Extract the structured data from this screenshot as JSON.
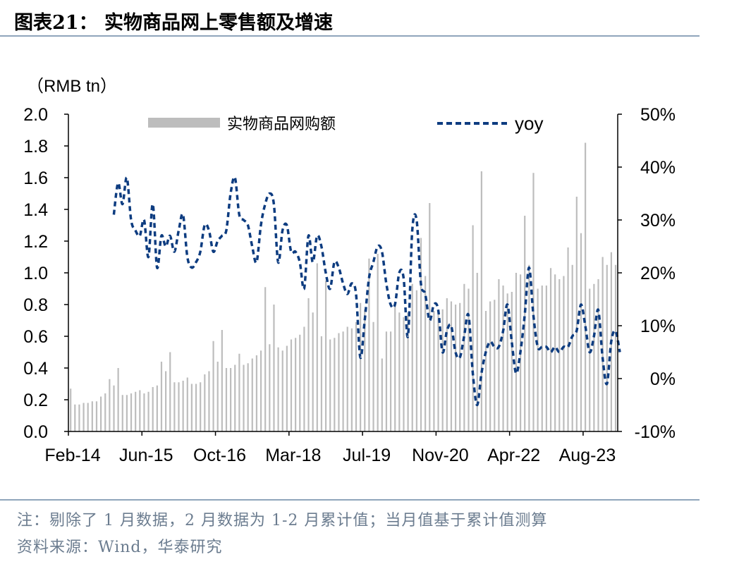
{
  "header": {
    "title": "图表21：  实物商品网上零售额及增速"
  },
  "footer": {
    "note": "注：剔除了 1 月数据，2 月数据为 1-2 月累计值；当月值基于累计值测算",
    "source": "资料来源：Wind，华泰研究"
  },
  "chart_data": {
    "type": "bar",
    "unit_label": "（RMB tn）",
    "x_tick_labels": [
      "Feb-14",
      "Jun-15",
      "Oct-16",
      "Mar-18",
      "Jul-19",
      "Nov-20",
      "Apr-22",
      "Aug-23"
    ],
    "y_left": {
      "min": 0,
      "max": 2.0,
      "step": 0.2,
      "tick_labels": [
        "0.0",
        "0.2",
        "0.4",
        "0.6",
        "0.8",
        "1.0",
        "1.2",
        "1.4",
        "1.6",
        "1.8",
        "2.0"
      ]
    },
    "y_right": {
      "min": -10,
      "max": 50,
      "step": 10,
      "tick_labels": [
        "-10%",
        "0%",
        "10%",
        "20%",
        "30%",
        "40%",
        "50%"
      ]
    },
    "legend": [
      "实物商品网购额",
      "yoy"
    ],
    "colors": {
      "bars": "#bdbdbd",
      "line": "#0d3c80",
      "axis": "#000000"
    },
    "series": [
      {
        "name": "实物商品网购额",
        "type": "bar",
        "axis": "left",
        "values": [
          0.27,
          0.17,
          0.17,
          0.18,
          0.18,
          0.19,
          0.19,
          0.22,
          0.24,
          0.33,
          0.29,
          0.4,
          0.23,
          0.23,
          0.24,
          0.25,
          0.26,
          0.24,
          0.25,
          0.28,
          0.29,
          0.44,
          0.38,
          0.5,
          0.31,
          0.31,
          0.32,
          0.34,
          0.3,
          0.3,
          0.31,
          0.36,
          0.38,
          0.57,
          0.44,
          0.64,
          0.4,
          0.4,
          0.42,
          0.49,
          0.42,
          0.43,
          0.46,
          0.48,
          0.51,
          0.91,
          0.55,
          0.8,
          0.53,
          0.51,
          0.54,
          0.58,
          0.59,
          0.61,
          0.66,
          0.84,
          0.75,
          1.06,
          0.6,
          0.95,
          0.58,
          0.59,
          0.62,
          0.63,
          0.66,
          0.65,
          0.69,
          0.81,
          0.77,
          1.09,
          0.69,
          1.12,
          0.46,
          0.63,
          0.63,
          0.81,
          0.75,
          0.72,
          0.75,
          0.93,
          0.89,
          1.22,
          0.98,
          1.44,
          0.76,
          0.74,
          0.77,
          0.84,
          0.82,
          0.8,
          0.81,
          0.93,
          0.9,
          1.3,
          1.0,
          1.64,
          0.76,
          0.82,
          0.83,
          0.96,
          0.92,
          0.87,
          0.88,
          1.0,
          0.99,
          1.36,
          1.05,
          1.63,
          0.9,
          0.92,
          0.92,
          1.03,
          0.99,
          0.96,
          0.98,
          1.16,
          1.05,
          1.48,
          1.25,
          1.82,
          0.9,
          0.93,
          0.96,
          1.1,
          1.05,
          1.13,
          1.05
        ]
      },
      {
        "name": "yoy",
        "type": "line",
        "axis": "right",
        "unit": "%",
        "start_index": 10,
        "values": [
          31,
          37,
          33,
          38,
          30,
          28,
          27,
          30,
          23,
          33,
          21,
          27,
          25,
          27,
          24,
          28,
          31,
          23,
          21,
          22,
          24,
          29,
          28,
          24,
          26,
          27,
          28,
          35,
          38,
          31,
          30,
          29,
          25,
          22,
          29,
          33,
          35,
          33,
          22,
          28,
          29,
          24,
          24,
          22,
          17,
          27,
          22,
          27,
          25,
          20,
          17,
          22,
          21,
          18,
          16,
          18,
          16,
          4,
          11,
          19,
          22,
          25,
          24,
          18,
          14,
          14,
          20,
          19,
          8,
          28,
          30,
          18,
          16,
          11,
          14,
          13,
          5,
          9,
          10,
          5,
          4,
          8,
          12,
          1,
          -5,
          1,
          5,
          7,
          6,
          6,
          9,
          14,
          7,
          1,
          5,
          12,
          21,
          12,
          6,
          6,
          6,
          5,
          6,
          5,
          6,
          6,
          8,
          9,
          14,
          10,
          5,
          8,
          13,
          4,
          -1,
          7,
          9,
          5
        ]
      }
    ]
  }
}
